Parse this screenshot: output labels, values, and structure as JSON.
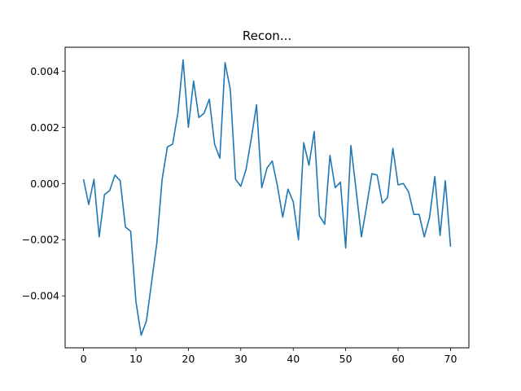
{
  "chart_data": {
    "type": "line",
    "title": "Recon...",
    "xlabel": "",
    "ylabel": "",
    "xlim": [
      -3.5,
      73.5
    ],
    "ylim": [
      -0.00585,
      0.00485
    ],
    "grid": false,
    "legend": "none",
    "x_ticks": [
      0,
      10,
      20,
      30,
      40,
      50,
      60,
      70
    ],
    "x_tick_labels": [
      "0",
      "10",
      "20",
      "30",
      "40",
      "50",
      "60",
      "70"
    ],
    "y_ticks": [
      -0.004,
      -0.002,
      0.0,
      0.002,
      0.004
    ],
    "y_tick_labels": [
      "−0.004",
      "−0.002",
      "0.000",
      "0.002",
      "0.004"
    ],
    "series": [
      {
        "color": "#1f77b4",
        "x": [
          0,
          1,
          2,
          3,
          4,
          5,
          6,
          7,
          8,
          9,
          10,
          11,
          12,
          13,
          14,
          15,
          16,
          17,
          18,
          19,
          20,
          21,
          22,
          23,
          24,
          25,
          26,
          27,
          28,
          29,
          30,
          31,
          32,
          33,
          34,
          35,
          36,
          37,
          38,
          39,
          40,
          41,
          42,
          43,
          44,
          45,
          46,
          47,
          48,
          49,
          50,
          51,
          52,
          53,
          54,
          55,
          56,
          57,
          58,
          59,
          60,
          61,
          62,
          63,
          64,
          65,
          66,
          67,
          68,
          69,
          70
        ],
        "values": [
          0.00015,
          -0.00075,
          0.00015,
          -0.0019,
          -0.0004,
          -0.00025,
          0.0003,
          0.0001,
          -0.00155,
          -0.0017,
          -0.0042,
          -0.0054,
          -0.0049,
          -0.0035,
          -0.0021,
          0.00015,
          0.0013,
          0.0014,
          0.0025,
          0.0044,
          0.002,
          0.00365,
          0.00235,
          0.0025,
          0.003,
          0.0014,
          0.0009,
          0.0043,
          0.00335,
          0.00015,
          -0.0001,
          0.0005,
          0.0016,
          0.0028,
          -0.00015,
          0.00055,
          0.0008,
          -0.0001,
          -0.0012,
          -0.0002,
          -0.00065,
          -0.002,
          0.00145,
          0.00065,
          0.00185,
          -0.00115,
          -0.00145,
          0.001,
          -0.00015,
          5e-05,
          -0.0023,
          0.00135,
          -0.00025,
          -0.0019,
          -0.0008,
          0.00035,
          0.0003,
          -0.0007,
          -0.0005,
          0.00125,
          -5e-05,
          0,
          -0.0003,
          -0.0011,
          -0.0011,
          -0.0019,
          -0.0012,
          0.00025,
          -0.00185,
          0.0001,
          -0.00225
        ]
      }
    ]
  }
}
